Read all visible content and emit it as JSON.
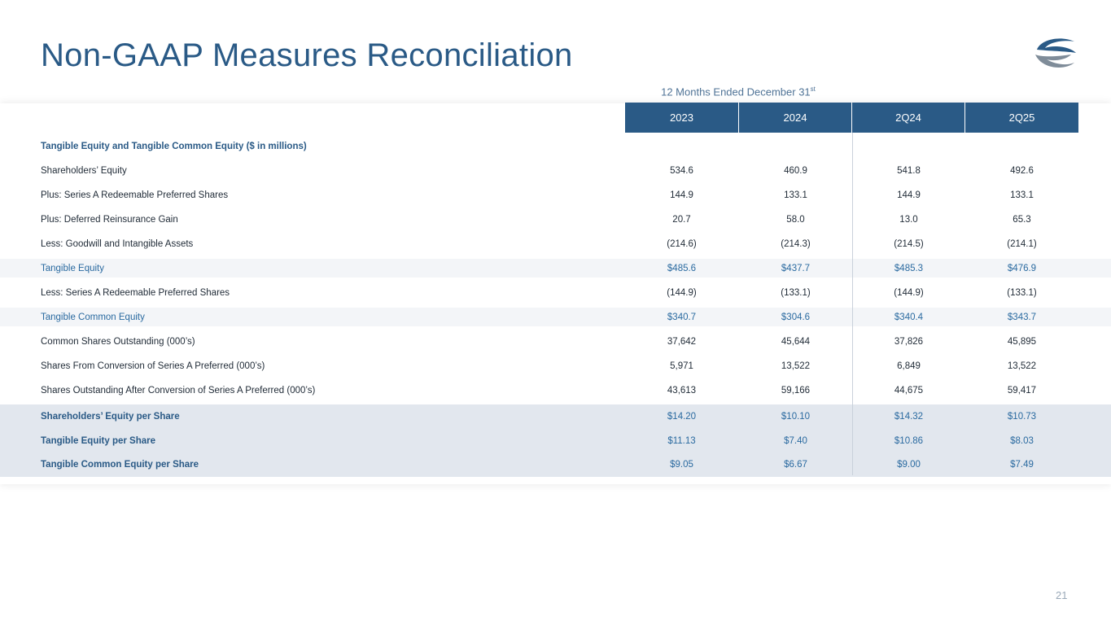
{
  "title": "Non-GAAP Measures Reconciliation",
  "period_label": {
    "text": "12 Months Ended December 31",
    "sup": "st"
  },
  "columns": [
    "2023",
    "2024",
    "2Q24",
    "2Q25"
  ],
  "rows": [
    {
      "label": "Tangible Equity and Tangible Common Equity ($ in millions)",
      "values": [
        "",
        "",
        "",
        ""
      ],
      "style": "section"
    },
    {
      "label": "Shareholders’ Equity",
      "values": [
        "534.6",
        "460.9",
        "541.8",
        "492.6"
      ],
      "style": "normal"
    },
    {
      "label": "Plus: Series A Redeemable Preferred Shares",
      "values": [
        "144.9",
        "133.1",
        "144.9",
        "133.1"
      ],
      "style": "normal"
    },
    {
      "label": "Plus: Deferred Reinsurance Gain",
      "values": [
        "20.7",
        "58.0",
        "13.0",
        "65.3"
      ],
      "style": "normal"
    },
    {
      "label": "Less: Goodwill and Intangible Assets",
      "values": [
        "(214.6)",
        "(214.3)",
        "(214.5)",
        "(214.1)"
      ],
      "style": "normal"
    },
    {
      "label": "Tangible Equity",
      "values": [
        "$485.6",
        "$437.7",
        "$485.3",
        "$476.9"
      ],
      "style": "blue"
    },
    {
      "label": "Less: Series A Redeemable Preferred Shares",
      "values": [
        "(144.9)",
        "(133.1)",
        "(144.9)",
        "(133.1)"
      ],
      "style": "normal"
    },
    {
      "label": "Tangible Common Equity",
      "values": [
        "$340.7",
        "$304.6",
        "$340.4",
        "$343.7"
      ],
      "style": "blue"
    },
    {
      "label": "Common Shares Outstanding (000’s)",
      "values": [
        "37,642",
        "45,644",
        "37,826",
        "45,895"
      ],
      "style": "normal"
    },
    {
      "label": "Shares From Conversion of Series A Preferred (000’s)",
      "values": [
        "5,971",
        "13,522",
        "6,849",
        "13,522"
      ],
      "style": "normal"
    },
    {
      "label": "Shares Outstanding After Conversion of Series A Preferred (000’s)",
      "values": [
        "43,613",
        "59,166",
        "44,675",
        "59,417"
      ],
      "style": "normal"
    },
    {
      "label": "Shareholders’ Equity per Share",
      "values": [
        "$14.20",
        "$10.10",
        "$14.32",
        "$10.73"
      ],
      "style": "sum"
    },
    {
      "label": "Tangible Equity per Share",
      "values": [
        "$11.13",
        "$7.40",
        "$10.86",
        "$8.03"
      ],
      "style": "sum"
    },
    {
      "label": "Tangible Common Equity per Share",
      "values": [
        "$9.05",
        "$6.67",
        "$9.00",
        "$7.49"
      ],
      "style": "sum"
    }
  ],
  "page_number": "21",
  "colors": {
    "accent": "#2a5a86",
    "highlight_text": "#2a6aa0",
    "summary_bg": "#e2e7ee"
  },
  "logo_icon": "company-logo-icon"
}
